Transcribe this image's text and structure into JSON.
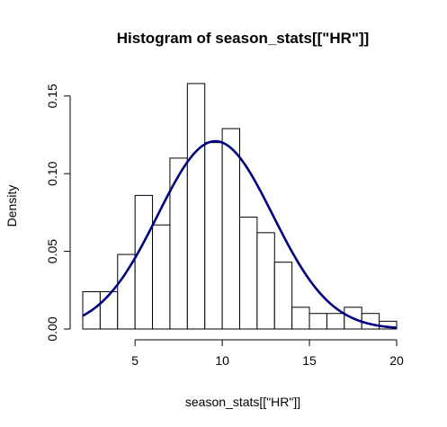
{
  "chart_data": {
    "type": "bar",
    "title": "Histogram of season_stats[[\"HR\"]]",
    "xlabel": "season_stats[[\"HR\"]]",
    "ylabel": "Density",
    "xlim": [
      2,
      20
    ],
    "ylim": [
      0,
      0.16
    ],
    "x_ticks": [
      5,
      10,
      15,
      20
    ],
    "y_ticks": [
      0.0,
      0.05,
      0.1,
      0.15
    ],
    "x_tick_labels": [
      "5",
      "10",
      "15",
      "20"
    ],
    "y_tick_labels": [
      "0.00",
      "0.05",
      "0.10",
      "0.15"
    ],
    "bins": [
      {
        "x0": 2,
        "x1": 3,
        "density": 0.024
      },
      {
        "x0": 3,
        "x1": 4,
        "density": 0.024
      },
      {
        "x0": 4,
        "x1": 5,
        "density": 0.048
      },
      {
        "x0": 5,
        "x1": 6,
        "density": 0.086
      },
      {
        "x0": 6,
        "x1": 7,
        "density": 0.067
      },
      {
        "x0": 7,
        "x1": 8,
        "density": 0.11
      },
      {
        "x0": 8,
        "x1": 9,
        "density": 0.158
      },
      {
        "x0": 9,
        "x1": 10,
        "density": 0.12
      },
      {
        "x0": 10,
        "x1": 11,
        "density": 0.129
      },
      {
        "x0": 11,
        "x1": 12,
        "density": 0.072
      },
      {
        "x0": 12,
        "x1": 13,
        "density": 0.062
      },
      {
        "x0": 13,
        "x1": 14,
        "density": 0.043
      },
      {
        "x0": 14,
        "x1": 15,
        "density": 0.014
      },
      {
        "x0": 15,
        "x1": 16,
        "density": 0.01
      },
      {
        "x0": 16,
        "x1": 17,
        "density": 0.01
      },
      {
        "x0": 17,
        "x1": 18,
        "density": 0.014
      },
      {
        "x0": 18,
        "x1": 19,
        "density": 0.01
      },
      {
        "x0": 19,
        "x1": 20,
        "density": 0.005
      }
    ],
    "curve": {
      "type": "normal-density",
      "mean": 9.6,
      "sd": 3.3,
      "x_range": [
        2,
        20
      ],
      "color": "#000080"
    },
    "grid": false
  }
}
